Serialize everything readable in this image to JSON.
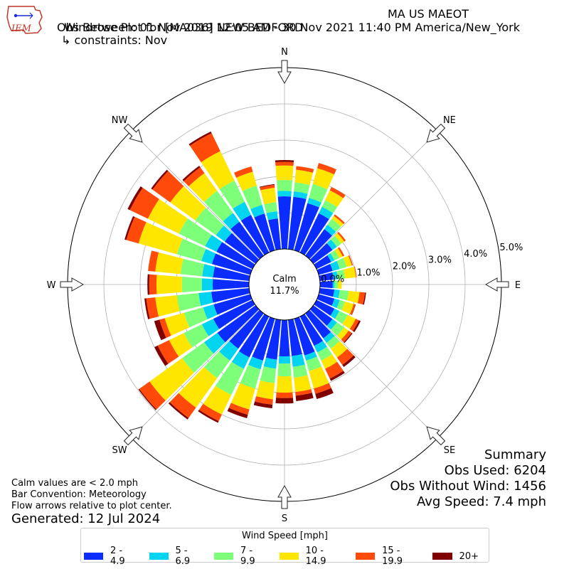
{
  "header": {
    "logo_text": "IEM",
    "title_line1": "Windrose Plot for [MA036] NEW BEDFORD",
    "title_state": "MA US MAEOT",
    "title_line2": "Obs Between: 01 Nov 2019 12:05 AM - 30 Nov 2021 11:40 PM America/New_York",
    "title_line3": "↳ constraints: Nov"
  },
  "notes": {
    "line1": "Calm values are < 2.0 mph",
    "line2": "Bar Convention: Meteorology",
    "line3": "Flow arrows relative to plot center."
  },
  "generated": "Generated: 12 Jul 2024",
  "summary": {
    "title": "Summary",
    "obs_used": "Obs Used: 6204",
    "obs_without_wind": "Obs Without Wind: 1456",
    "avg_speed": "Avg Speed: 7.4 mph"
  },
  "legend": {
    "title": "Wind Speed [mph]",
    "items": [
      {
        "label": "2 - 4.9",
        "color": "#0a2cff"
      },
      {
        "label": "5 - 6.9",
        "color": "#00d4f0"
      },
      {
        "label": "7 - 9.9",
        "color": "#7dff7a"
      },
      {
        "label": "10 - 14.9",
        "color": "#ffe600"
      },
      {
        "label": "15 - 19.9",
        "color": "#ff4a0a"
      },
      {
        "label": "20+",
        "color": "#800000"
      }
    ]
  },
  "chart_data": {
    "type": "windrose",
    "calm_label": "Calm",
    "calm_value": "11.7%",
    "radial_ticks": [
      "0.0%",
      "1.0%",
      "2.0%",
      "3.0%",
      "4.0%",
      "5.0%"
    ],
    "radial_max": 5.0,
    "compass_labels": [
      "N",
      "NE",
      "E",
      "SE",
      "S",
      "SW",
      "W",
      "NW"
    ],
    "speed_bins": [
      "2 - 4.9",
      "5 - 6.9",
      "7 - 9.9",
      "10 - 14.9",
      "15 - 19.9",
      "20+"
    ],
    "directions_deg": [
      0,
      10,
      20,
      30,
      40,
      50,
      60,
      70,
      80,
      90,
      100,
      110,
      120,
      130,
      140,
      150,
      160,
      170,
      180,
      190,
      200,
      210,
      220,
      230,
      240,
      250,
      260,
      270,
      280,
      290,
      300,
      310,
      320,
      330,
      340,
      350
    ],
    "cumulative_percent": [
      [
        1.45,
        1.6,
        1.9,
        2.3,
        2.4,
        2.45
      ],
      [
        1.45,
        1.6,
        1.85,
        2.2,
        2.3,
        2.3
      ],
      [
        1.35,
        1.5,
        1.9,
        2.35,
        2.5,
        2.5
      ],
      [
        1.2,
        1.4,
        1.6,
        1.9,
        2.0,
        2.0
      ],
      [
        0.9,
        1.05,
        1.25,
        1.35,
        1.4,
        1.4
      ],
      [
        0.65,
        0.8,
        0.95,
        1.05,
        1.1,
        1.1
      ],
      [
        0.45,
        0.55,
        0.7,
        0.8,
        0.85,
        0.85
      ],
      [
        0.4,
        0.6,
        0.8,
        0.95,
        0.98,
        0.98
      ],
      [
        0.38,
        0.5,
        0.7,
        1.0,
        1.02,
        1.02
      ],
      [
        0.35,
        0.4,
        0.5,
        0.6,
        0.6,
        0.6
      ],
      [
        0.4,
        0.55,
        0.8,
        1.1,
        1.25,
        1.28
      ],
      [
        0.45,
        0.6,
        0.75,
        1.0,
        1.05,
        1.06
      ],
      [
        0.55,
        0.7,
        0.95,
        1.2,
        1.3,
        1.35
      ],
      [
        0.65,
        0.8,
        1.05,
        1.2,
        1.3,
        1.33
      ],
      [
        0.85,
        1.0,
        1.2,
        1.5,
        1.75,
        1.82
      ],
      [
        0.9,
        1.1,
        1.35,
        1.6,
        1.9,
        1.97
      ],
      [
        1.05,
        1.2,
        1.5,
        2.0,
        2.15,
        2.3
      ],
      [
        1.0,
        1.3,
        1.6,
        2.0,
        2.1,
        2.25
      ],
      [
        1.0,
        1.2,
        1.55,
        2.0,
        2.15,
        2.3
      ],
      [
        1.1,
        1.35,
        1.75,
        2.2,
        2.35,
        2.45
      ],
      [
        1.2,
        1.45,
        2.0,
        2.6,
        2.75,
        2.85
      ],
      [
        1.25,
        1.6,
        2.4,
        3.0,
        3.2,
        3.25
      ],
      [
        1.2,
        1.6,
        2.2,
        3.2,
        3.55,
        3.6
      ],
      [
        1.3,
        1.75,
        2.5,
        3.6,
        3.95,
        3.98
      ],
      [
        1.2,
        1.55,
        2.1,
        2.55,
        2.9,
        3.0
      ],
      [
        1.05,
        1.35,
        1.9,
        2.45,
        2.6,
        2.75
      ],
      [
        1.05,
        1.4,
        2.0,
        2.6,
        2.85,
        2.9
      ],
      [
        1.0,
        1.3,
        1.85,
        2.55,
        2.75,
        2.8
      ],
      [
        1.0,
        1.3,
        1.9,
        2.6,
        2.8,
        2.8
      ],
      [
        1.1,
        1.4,
        2.1,
        3.2,
        3.55,
        3.6
      ],
      [
        1.1,
        1.45,
        2.25,
        3.2,
        3.75,
        3.82
      ],
      [
        1.05,
        1.35,
        2.05,
        2.9,
        3.5,
        3.55
      ],
      [
        1.15,
        1.45,
        2.2,
        2.8,
        3.0,
        3.05
      ],
      [
        1.15,
        1.55,
        2.2,
        3.1,
        3.65,
        3.7
      ],
      [
        1.05,
        1.3,
        1.85,
        2.25,
        2.4,
        2.4
      ],
      [
        0.85,
        1.05,
        1.3,
        1.7,
        1.78,
        1.8
      ]
    ]
  }
}
